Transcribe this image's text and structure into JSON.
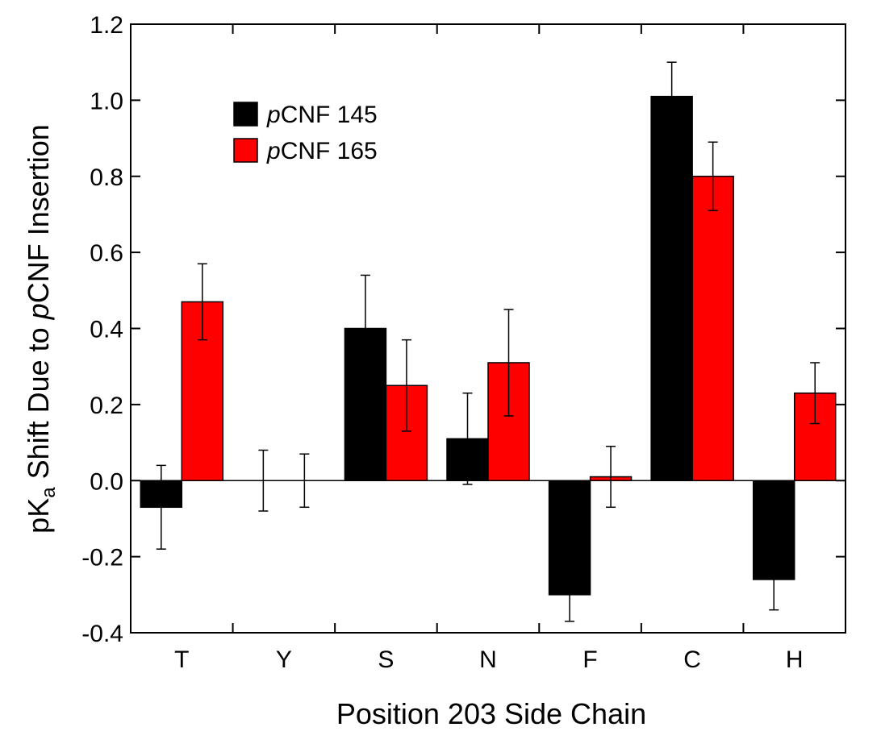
{
  "chart_data": {
    "type": "bar",
    "title": "",
    "xlabel": "Position 203 Side Chain",
    "ylabel": {
      "prefix": "pK",
      "subscript": "a",
      "middle": " Shift Due to ",
      "italic": "p",
      "suffix": "CNF Insertion"
    },
    "categories": [
      "T",
      "Y",
      "S",
      "N",
      "F",
      "C",
      "H"
    ],
    "ylim": [
      -0.4,
      1.2
    ],
    "yticks": [
      "-0.4",
      "-0.2",
      "0.0",
      "0.2",
      "0.4",
      "0.6",
      "0.8",
      "1.0",
      "1.2"
    ],
    "grid": false,
    "legend_position": "top-left",
    "series": [
      {
        "name": "pCNF 145",
        "name_parts": {
          "italic": "p",
          "rest": "CNF 145"
        },
        "color": "#000000",
        "values": [
          -0.07,
          0.0,
          0.4,
          0.11,
          -0.3,
          1.01,
          -0.26
        ],
        "errors": [
          0.11,
          0.08,
          0.14,
          0.12,
          0.07,
          0.09,
          0.08
        ]
      },
      {
        "name": "pCNF 165",
        "name_parts": {
          "italic": "p",
          "rest": "CNF 165"
        },
        "color": "#ff0000",
        "values": [
          0.47,
          0.0,
          0.25,
          0.31,
          0.01,
          0.8,
          0.23
        ],
        "errors": [
          0.1,
          0.07,
          0.12,
          0.14,
          0.08,
          0.09,
          0.08
        ]
      }
    ]
  }
}
